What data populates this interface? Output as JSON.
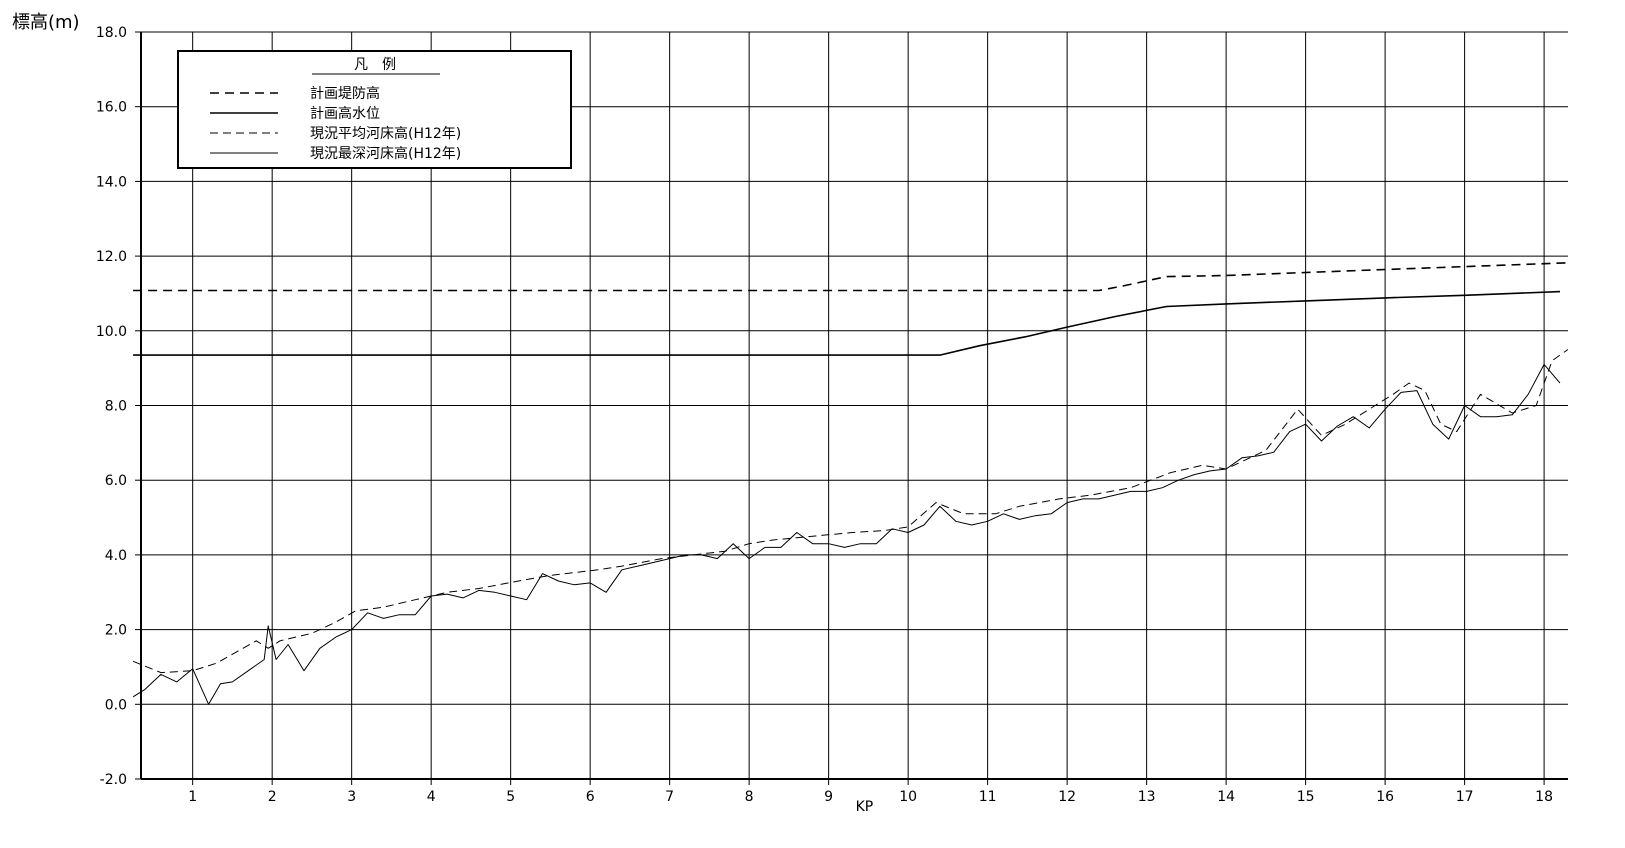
{
  "chart_data": {
    "type": "line",
    "ylabel": "標高(m)",
    "xlabel": "KP",
    "ylim": [
      -2.0,
      18.0
    ],
    "xlim": [
      0.35,
      18.2
    ],
    "yticks": [
      "-2.0",
      "0.0",
      "2.0",
      "4.0",
      "6.0",
      "8.0",
      "10.0",
      "12.0",
      "14.0",
      "16.0",
      "18.0"
    ],
    "xticks": [
      "1",
      "2",
      "3",
      "4",
      "5",
      "6",
      "7",
      "8",
      "9",
      "10",
      "11",
      "12",
      "13",
      "14",
      "15",
      "16",
      "17",
      "18"
    ],
    "grid": true,
    "legend": {
      "title": "凡　例",
      "placement": "top-left",
      "entries": [
        "計画堤防高",
        "計画高水位",
        "現況平均河床高(H12年)",
        "現況最深河床高(H12年)"
      ]
    },
    "series": [
      {
        "name": "計画堤防高",
        "style": "dashed-thick",
        "x": [
          0.25,
          12.4,
          12.7,
          13.25,
          14.0,
          15.0,
          16.0,
          17.0,
          18.3
        ],
        "y": [
          11.08,
          11.08,
          11.2,
          11.45,
          11.48,
          11.56,
          11.64,
          11.72,
          11.82
        ]
      },
      {
        "name": "計画高水位",
        "style": "solid-thick",
        "x": [
          0.25,
          5.4,
          10.4,
          10.9,
          11.5,
          12.0,
          12.6,
          13.25,
          14.0,
          15.0,
          16.0,
          17.0,
          18.2
        ],
        "y": [
          9.35,
          9.35,
          9.35,
          9.6,
          9.85,
          10.1,
          10.38,
          10.65,
          10.72,
          10.8,
          10.88,
          10.95,
          11.05
        ]
      },
      {
        "name": "現況平均河床高(H12年)",
        "style": "dashed-thin",
        "x": [
          0.25,
          0.6,
          1.0,
          1.3,
          1.8,
          1.95,
          2.1,
          2.5,
          2.8,
          3.05,
          3.4,
          3.8,
          4.2,
          4.6,
          5.1,
          5.5,
          6.1,
          6.4,
          6.9,
          7.3,
          7.7,
          8.0,
          8.3,
          8.8,
          9.3,
          9.7,
          10.0,
          10.35,
          10.7,
          11.1,
          11.4,
          11.9,
          12.3,
          12.8,
          13.3,
          13.7,
          14.0,
          14.5,
          14.9,
          15.2,
          15.5,
          15.8,
          16.1,
          16.3,
          16.5,
          16.7,
          16.9,
          17.2,
          17.6,
          17.9,
          18.1,
          18.3
        ],
        "y": [
          1.15,
          0.85,
          0.9,
          1.1,
          1.7,
          1.5,
          1.7,
          1.9,
          2.2,
          2.5,
          2.6,
          2.8,
          3.0,
          3.1,
          3.3,
          3.45,
          3.6,
          3.7,
          3.9,
          4.0,
          4.1,
          4.3,
          4.4,
          4.5,
          4.6,
          4.65,
          4.75,
          5.4,
          5.1,
          5.1,
          5.3,
          5.5,
          5.6,
          5.8,
          6.2,
          6.4,
          6.3,
          6.8,
          7.9,
          7.2,
          7.5,
          7.9,
          8.3,
          8.6,
          8.4,
          7.5,
          7.3,
          8.3,
          7.8,
          8.0,
          9.2,
          9.5
        ]
      },
      {
        "name": "現況最深河床高(H12年)",
        "style": "solid-thin",
        "x": [
          0.25,
          0.4,
          0.6,
          0.8,
          1.0,
          1.2,
          1.35,
          1.5,
          1.7,
          1.9,
          1.95,
          2.05,
          2.2,
          2.4,
          2.6,
          2.8,
          3.0,
          3.2,
          3.4,
          3.6,
          3.8,
          4.0,
          4.2,
          4.4,
          4.6,
          4.8,
          5.0,
          5.2,
          5.4,
          5.6,
          5.8,
          6.0,
          6.2,
          6.4,
          6.6,
          6.8,
          7.0,
          7.2,
          7.4,
          7.6,
          7.8,
          8.0,
          8.2,
          8.4,
          8.6,
          8.8,
          9.0,
          9.2,
          9.4,
          9.6,
          9.8,
          10.0,
          10.2,
          10.4,
          10.6,
          10.8,
          11.0,
          11.2,
          11.4,
          11.6,
          11.8,
          12.0,
          12.2,
          12.4,
          12.6,
          12.8,
          13.0,
          13.2,
          13.4,
          13.6,
          13.8,
          14.0,
          14.2,
          14.4,
          14.6,
          14.8,
          15.0,
          15.2,
          15.4,
          15.6,
          15.8,
          16.0,
          16.2,
          16.4,
          16.6,
          16.8,
          17.0,
          17.2,
          17.4,
          17.6,
          17.8,
          18.0,
          18.2
        ],
        "y": [
          0.2,
          0.4,
          0.8,
          0.6,
          0.95,
          0.0,
          0.55,
          0.6,
          0.9,
          1.2,
          2.1,
          1.2,
          1.6,
          0.9,
          1.5,
          1.8,
          2.0,
          2.45,
          2.3,
          2.4,
          2.4,
          2.9,
          2.95,
          2.85,
          3.05,
          3.0,
          2.9,
          2.8,
          3.5,
          3.3,
          3.2,
          3.25,
          3.0,
          3.6,
          3.7,
          3.8,
          3.9,
          4.0,
          4.0,
          3.9,
          4.3,
          3.9,
          4.2,
          4.2,
          4.6,
          4.3,
          4.3,
          4.2,
          4.3,
          4.3,
          4.7,
          4.6,
          4.8,
          5.3,
          4.9,
          4.8,
          4.9,
          5.1,
          4.95,
          5.05,
          5.1,
          5.4,
          5.5,
          5.5,
          5.6,
          5.7,
          5.7,
          5.8,
          6.0,
          6.15,
          6.25,
          6.3,
          6.6,
          6.65,
          6.75,
          7.3,
          7.5,
          7.05,
          7.45,
          7.7,
          7.4,
          7.9,
          8.35,
          8.4,
          7.5,
          7.1,
          8.0,
          7.7,
          7.7,
          7.75,
          8.3,
          9.1,
          8.6
        ]
      }
    ]
  }
}
